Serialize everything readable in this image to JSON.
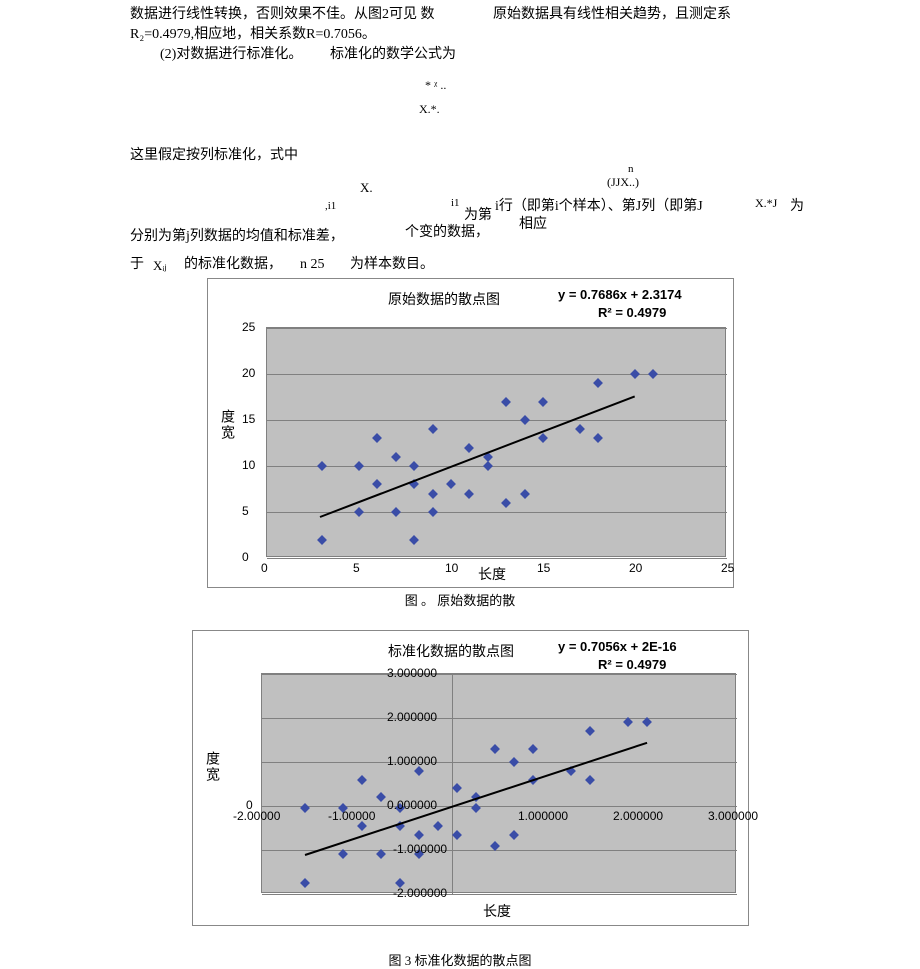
{
  "text": {
    "p1a": "数据进行线性转换，否则效果不佳。从图2可见 数",
    "p1b": "原始数据具有线性相关趋势，且测定系",
    "p2": "R₂=0.4979,相应地，相关系数R=0.7056。",
    "p3a": "(2)对数据进行标准化。",
    "p3b": "标准化的数学公式为",
    "sym1": "* ᵡ ..",
    "sym2": "X.*.",
    "p4": "这里假定按列标准化，式中",
    "symX": "X.",
    "sym_i1a": ",i1",
    "sym_i1b": "i1",
    "sym_n": "n",
    "sym_jjX": "(JJX..)",
    "p5a": "为第",
    "p5b": "i行（即第i个样本）、第J列（即第J",
    "p5c": "X.*J",
    "p5d": "为",
    "p6a": "分别为第j列数据的均值和标准差，",
    "p6b": "个变的数据，",
    "p6c": "相应",
    "p7a": "于",
    "p7b": "Xᵢⱼ",
    "p7c": "的标准化数据，",
    "p7d": "n 25",
    "p7e": "为样本数目。",
    "cap1": "图 。 原始数据的散",
    "cap2": "图 3 标准化数据的散点图"
  },
  "chart1": {
    "type": "scatter",
    "title": "原始数据的散点图",
    "equation_line1": "y = 0.7686x + 2.3174",
    "equation_line2": "R² = 0.4979",
    "xlabel": "长度",
    "ylabel": "度宽",
    "xlim": [
      0,
      25
    ],
    "ylim": [
      0,
      25
    ],
    "xtick_step": 5,
    "ytick_step": 5,
    "xticks": [
      "0",
      "5",
      "10",
      "15",
      "20",
      "25"
    ],
    "yticks": [
      "0",
      "5",
      "10",
      "15",
      "20",
      "25"
    ],
    "background_color": "#c0c0c0",
    "grid_color": "#808080",
    "marker_color": "#3a4da7",
    "marker_size": 7,
    "trend_color": "#000000",
    "trend_p1": [
      2.9,
      4.6
    ],
    "trend_p2": [
      20.0,
      17.7
    ],
    "points": [
      [
        3,
        2
      ],
      [
        3,
        10
      ],
      [
        5,
        5
      ],
      [
        5,
        10
      ],
      [
        6,
        8
      ],
      [
        6,
        13
      ],
      [
        7,
        5
      ],
      [
        7,
        11
      ],
      [
        8,
        2
      ],
      [
        8,
        8
      ],
      [
        8,
        10
      ],
      [
        9,
        5
      ],
      [
        9,
        7
      ],
      [
        9,
        14
      ],
      [
        10,
        8
      ],
      [
        11,
        7
      ],
      [
        11,
        12
      ],
      [
        12,
        10
      ],
      [
        12,
        11
      ],
      [
        13,
        6
      ],
      [
        13,
        17
      ],
      [
        14,
        7
      ],
      [
        14,
        15
      ],
      [
        15,
        13
      ],
      [
        15,
        17
      ],
      [
        17,
        14
      ],
      [
        18,
        19
      ],
      [
        18,
        13
      ],
      [
        20,
        20
      ],
      [
        21,
        20
      ]
    ]
  },
  "chart2": {
    "type": "scatter",
    "title": "标准化数据的散点图",
    "equation_line1": "y = 0.7056x + 2E-16",
    "equation_line2": "R² = 0.4979",
    "xlabel": "长度",
    "ylabel": "度宽",
    "xlim": [
      -2.0,
      3.0
    ],
    "ylim": [
      -2.0,
      3.0
    ],
    "xtick_step": 1.0,
    "ytick_step": 1.0,
    "xticks": [
      "-2.00000",
      "-1.00000",
      "0.000000",
      "1.000000",
      "2.000000",
      "3.000000"
    ],
    "yticks_neg": [
      "-1.000000",
      "-2.000000"
    ],
    "yticks_pos": [
      "0.000000",
      "1.000000",
      "2.000000",
      "3.000000"
    ],
    "zero_label": "0",
    "background_color": "#c0c0c0",
    "grid_color": "#808080",
    "marker_color": "#3a4da7",
    "marker_size": 7,
    "trend_color": "#000000",
    "trend_p1": [
      -1.55,
      -1.1
    ],
    "trend_p2": [
      2.05,
      1.45
    ],
    "points": [
      [
        -1.55,
        -1.75
      ],
      [
        -1.55,
        -0.05
      ],
      [
        -1.15,
        -1.1
      ],
      [
        -1.15,
        -0.05
      ],
      [
        -0.95,
        -0.45
      ],
      [
        -0.95,
        0.6
      ],
      [
        -0.75,
        -1.1
      ],
      [
        -0.75,
        0.2
      ],
      [
        -0.55,
        -1.75
      ],
      [
        -0.55,
        -0.45
      ],
      [
        -0.55,
        -0.05
      ],
      [
        -0.35,
        -1.1
      ],
      [
        -0.35,
        -0.65
      ],
      [
        -0.35,
        0.8
      ],
      [
        -0.15,
        -0.45
      ],
      [
        0.05,
        -0.65
      ],
      [
        0.05,
        0.4
      ],
      [
        0.25,
        -0.05
      ],
      [
        0.25,
        0.2
      ],
      [
        0.45,
        -0.9
      ],
      [
        0.45,
        1.3
      ],
      [
        0.65,
        -0.65
      ],
      [
        0.65,
        1.0
      ],
      [
        0.85,
        0.6
      ],
      [
        0.85,
        1.3
      ],
      [
        1.25,
        0.8
      ],
      [
        1.45,
        1.7
      ],
      [
        1.45,
        0.6
      ],
      [
        1.85,
        1.9
      ],
      [
        2.05,
        1.9
      ]
    ]
  }
}
